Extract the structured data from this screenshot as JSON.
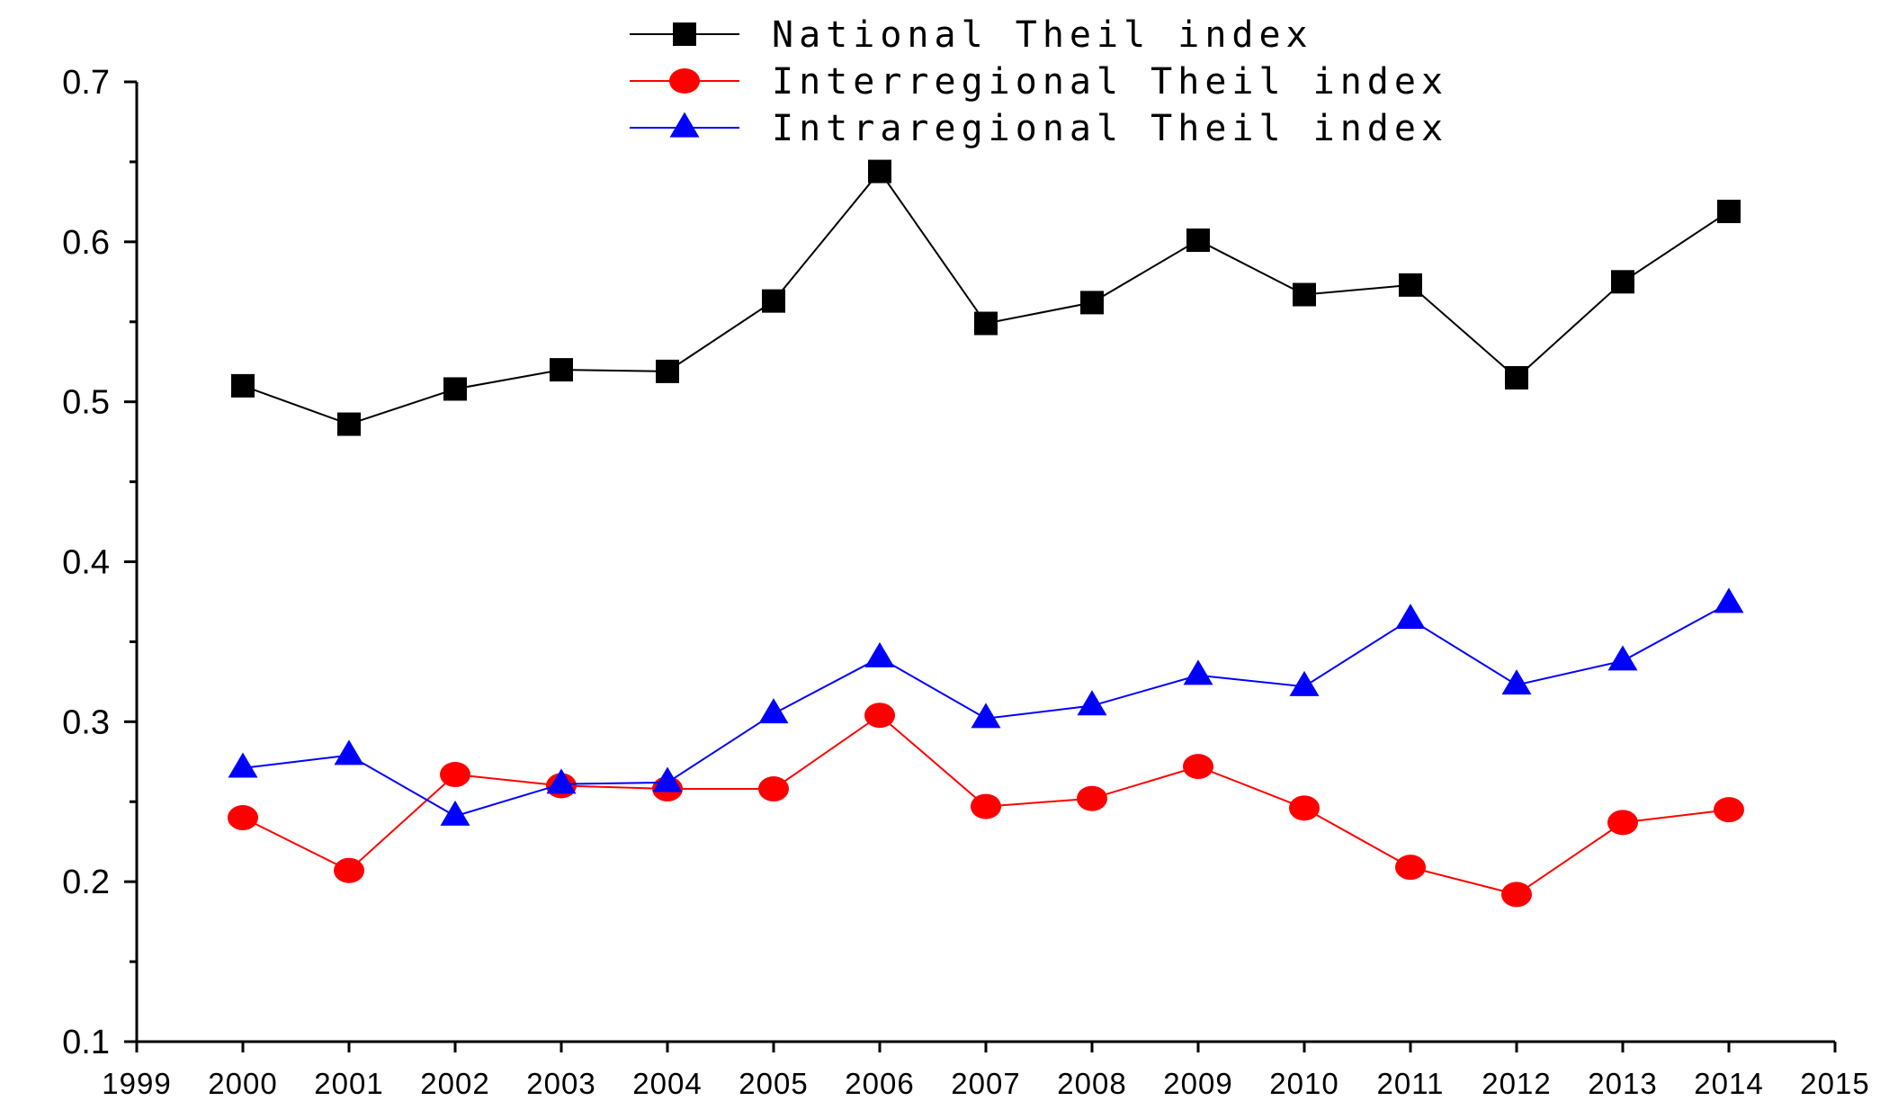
{
  "chart_data": {
    "type": "line",
    "title": "",
    "xlabel": "",
    "ylabel": "",
    "xlim": [
      1999,
      2015
    ],
    "ylim": [
      0.1,
      0.7
    ],
    "x_ticks": [
      "1999",
      "2000",
      "2001",
      "2002",
      "2003",
      "2004",
      "2005",
      "2006",
      "2007",
      "2008",
      "2009",
      "2010",
      "2011",
      "2012",
      "2013",
      "2014",
      "2015"
    ],
    "y_ticks": [
      "0.1",
      "0.2",
      "0.3",
      "0.4",
      "0.5",
      "0.6",
      "0.7"
    ],
    "grid": false,
    "legend_position": "top-center",
    "x": [
      2000,
      2001,
      2002,
      2003,
      2004,
      2005,
      2006,
      2007,
      2008,
      2009,
      2010,
      2011,
      2012,
      2013,
      2014
    ],
    "series": [
      {
        "name": "National Theil index",
        "color": "#000000",
        "marker": "square",
        "values": [
          0.51,
          0.486,
          0.508,
          0.52,
          0.519,
          0.563,
          0.644,
          0.549,
          0.562,
          0.601,
          0.567,
          0.573,
          0.515,
          0.575,
          0.619
        ]
      },
      {
        "name": "Interregional Theil index",
        "color": "#ff0000",
        "marker": "circle",
        "values": [
          0.24,
          0.207,
          0.267,
          0.26,
          0.258,
          0.258,
          0.304,
          0.247,
          0.252,
          0.272,
          0.246,
          0.209,
          0.192,
          0.237,
          0.245
        ]
      },
      {
        "name": "Intraregional Theil index",
        "color": "#0000ff",
        "marker": "triangle",
        "values": [
          0.271,
          0.279,
          0.241,
          0.261,
          0.262,
          0.305,
          0.34,
          0.302,
          0.31,
          0.329,
          0.322,
          0.364,
          0.323,
          0.338,
          0.374
        ]
      }
    ]
  }
}
